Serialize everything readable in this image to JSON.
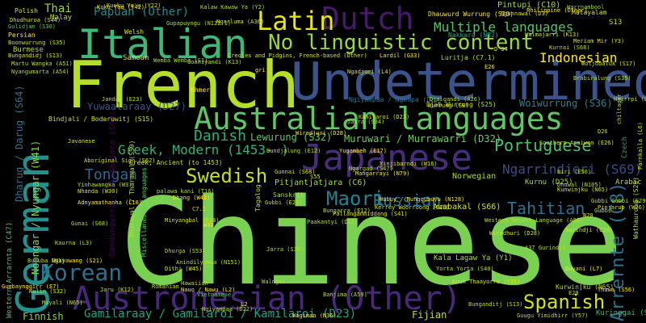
{
  "words": [
    {
      "text": "Chinese",
      "color": "#7ad151"
    },
    {
      "text": "Undetermined",
      "color": "#3b528b"
    },
    {
      "text": "French",
      "color": "#b5de2b"
    },
    {
      "text": "German",
      "color": "#21918c"
    },
    {
      "text": "Italian",
      "color": "#3aba76"
    },
    {
      "text": "Australian languages",
      "color": "#5ec962"
    },
    {
      "text": "Japanese",
      "color": "#472d7b"
    },
    {
      "text": "Austronesian (Other)",
      "color": "#482979"
    },
    {
      "text": "Dutch",
      "color": "#48186a"
    },
    {
      "text": "Latin",
      "color": "#e7e419"
    },
    {
      "text": "No linguistic content",
      "color": "#95d840"
    },
    {
      "text": "Korean",
      "color": "#2c728e"
    },
    {
      "text": "Arrernte (C8)",
      "color": "#2c728e"
    },
    {
      "text": "Spanish",
      "color": "#d0e11c"
    },
    {
      "text": "Swedish",
      "color": "#c0df25"
    },
    {
      "text": "Portuguese",
      "color": "#4ac16d"
    },
    {
      "text": "Multiple languages",
      "color": "#52c569"
    },
    {
      "text": "Indonesian",
      "color": "#fde725"
    },
    {
      "text": "Maori",
      "color": "#26828e"
    },
    {
      "text": "Danish",
      "color": "#28ae80"
    },
    {
      "text": "Tahitian",
      "color": "#2c728e"
    },
    {
      "text": "Russian",
      "color": "#2a788e"
    },
    {
      "text": "Tongan",
      "color": "#31688e"
    },
    {
      "text": "Ngarrindjeri (S69)",
      "color": "#3e4a89"
    },
    {
      "text": "Greek, Modern (1453- )",
      "color": "#2fb47c"
    },
    {
      "text": "Gamilaraay / Gamilaroi / Kamilaroi (D23)",
      "color": "#1fa188"
    },
    {
      "text": "Yuwaalaraay (D27)",
      "color": "#3b528b"
    },
    {
      "text": "Lewurung (S32)",
      "color": "#5ec962"
    },
    {
      "text": "Muruwari / Murrawarri (D32)",
      "color": "#6ece58"
    },
    {
      "text": "Pitjantjatjara (C6)",
      "color": "#a5db36"
    },
    {
      "text": "Noongar / Nyungar (W41)",
      "color": "#84d44b"
    },
    {
      "text": "Woiwurrung (S36)",
      "color": "#26828e"
    },
    {
      "text": "Awabakal (S66)",
      "color": "#d8e219"
    },
    {
      "text": "Fijian",
      "color": "#b5de2b"
    },
    {
      "text": "Kala Lagaw Ya (Y1)",
      "color": "#a8db34"
    },
    {
      "text": "Kurnu (D25)",
      "color": "#a0da39"
    },
    {
      "text": "Finnish",
      "color": "#8dd544"
    },
    {
      "text": "Thai",
      "color": "#98d83e"
    },
    {
      "text": "Papuan (Other)",
      "color": "#23898e"
    },
    {
      "text": "Pintupi (C10)",
      "color": "#a2da37"
    },
    {
      "text": "Norwegian",
      "color": "#a8db34"
    },
    {
      "text": "Kuringgai (S62)",
      "color": "#3aba76"
    },
    {
      "text": "Kurwinjku (N65)",
      "color": "#b0dd2f"
    },
    {
      "text": "Dharug / Darug (S64)",
      "color": "#2d708e"
    },
    {
      "text": "Gundungurra / Gandangara (S60)",
      "color": "#440154"
    },
    {
      "text": "Bindjali / Bodaruwitj (S15)",
      "color": "#c8e020"
    },
    {
      "text": "Sanskrit",
      "color": "#addc30"
    },
    {
      "text": "Greek, Ancient (to 1453)",
      "color": "#c2df23"
    },
    {
      "text": "Wathaurong (S29)",
      "color": "#b5de2b"
    },
    {
      "text": "Miscellaneous languages",
      "color": "#5ec962"
    },
    {
      "text": "Tagalog",
      "color": "#c2df23"
    },
    {
      "text": "Arabic",
      "color": "#b5de2b"
    },
    {
      "text": "Czech",
      "color": "#1f9e89"
    },
    {
      "text": "Western Arrarnta (C47)",
      "color": "#44bf70"
    },
    {
      "text": "Djab Wurrung (S25)",
      "color": "#b5de2b"
    },
    {
      "text": "Kerrey Woorroong (S25)",
      "color": "#d8e219"
    },
    {
      "text": "Wubuy / Nunggubuyu (N128)",
      "color": "#fde725"
    },
    {
      "text": "Gumbaynggirr (E7)",
      "color": "#fde725"
    },
    {
      "text": "Samoan",
      "color": "#d8e219"
    },
    {
      "text": "Luritja (C7.1)",
      "color": "#a8db34"
    },
    {
      "text": "Nakkara (N82)",
      "color": "#22a785"
    },
    {
      "text": "Warrnambool",
      "color": "#9dd93b"
    },
    {
      "text": "Persian",
      "color": "#fde725"
    },
    {
      "text": "Polish",
      "color": "#d8e219"
    },
    {
      "text": "Malay",
      "color": "#b5de2b"
    },
    {
      "text": "Khmer",
      "color": "#fde725"
    },
    {
      "text": "Hawaiian",
      "color": "#b5de2b"
    },
    {
      "text": "Romanian",
      "color": "#b5de2b"
    },
    {
      "text": "Vietnamese",
      "color": "#5ec962"
    },
    {
      "text": "Brabiralung (S35)",
      "color": "#b5de2b"
    },
    {
      "text": "Meriam Mir (Y3)",
      "color": "#d8e219"
    },
    {
      "text": "Gubbi Gubbi (E29)",
      "color": "#b5de2b"
    },
    {
      "text": "Gulidjan (S30)",
      "color": "#5ec962"
    },
    {
      "text": "Boonwurrung (S35)",
      "color": "#d0e11c"
    },
    {
      "text": "Dhauwurd Wurrung (S20)",
      "color": "#fde725"
    },
    {
      "text": "Javanese",
      "color": "#d8e219"
    },
    {
      "text": "Ngiyampaa / Ngempa (D22)",
      "color": "#2a788e"
    },
    {
      "text": "Bungandidj (S13)",
      "color": "#d8e219"
    },
    {
      "text": "Burmese",
      "color": "#b5de2b"
    },
    {
      "text": "Djalgandi (A26)",
      "color": "#addc30"
    },
    {
      "text": "Wagiman (N36)",
      "color": "#fde725"
    },
    {
      "text": "Kalaw Kawaw Ya (Y2)",
      "color": "#addc30"
    },
    {
      "text": "Welsh",
      "color": "#d8e219"
    },
    {
      "text": "Jarra (S38)",
      "color": "#addc30"
    },
    {
      "text": "palawa kani (T16)",
      "color": "#b5de2b"
    },
    {
      "text": "Minyangbal (E18)",
      "color": "#d8e219"
    },
    {
      "text": "Dhurga (S53)",
      "color": "#b5de2b"
    },
    {
      "text": "Dharawal / Tharawal (S59)",
      "color": "#b5de2b"
    },
    {
      "text": "Nauo / Nawu (L2)",
      "color": "#fde725"
    },
    {
      "text": "Jaru (K12)",
      "color": "#d8e219"
    },
    {
      "text": "Wemba Wemba (S1)",
      "color": "#addc30"
    },
    {
      "text": "Creoles and Pidgins, French-based (Other)",
      "color": "#d8e219"
    },
    {
      "text": "Southern Anaiwan (E26)",
      "color": "#d8e219"
    },
    {
      "text": "Parnkalla (L6)",
      "color": "#d0e11c"
    },
    {
      "text": "Gupapuyngu (N122.1)",
      "color": "#b5de2b"
    },
    {
      "text": "Dhudhuroa (S44)",
      "color": "#d8e219"
    },
    {
      "text": "Wotjobaluk (S17)",
      "color": "#d0e11c"
    },
    {
      "text": "Ngunnawal (D3)",
      "color": "#d8e219"
    },
    {
      "text": "Mangarrayi (N79)",
      "color": "#fde725"
    },
    {
      "text": "Pallanganmiddang (S41)",
      "color": "#d8e219"
    },
    {
      "text": "Ngargad (S47)",
      "color": "#b5de2b"
    },
    {
      "text": "Kuku Yau (Y42)",
      "color": "#fde725"
    },
    {
      "text": "Kaurna (L3)",
      "color": "#b5de2b"
    },
    {
      "text": "Ngayawang (S21)",
      "color": "#fde725"
    },
    {
      "text": "Gunai (S68)",
      "color": "#b5de2b"
    },
    {
      "text": "Yorta Yorta (S40)",
      "color": "#b5de2b"
    },
    {
      "text": "Lardil (G33)",
      "color": "#fde725"
    },
    {
      "text": "Paakantyi (D12)",
      "color": "#b5de2b"
    },
    {
      "text": "Wiradjuri (D28)",
      "color": "#fde725"
    },
    {
      "text": "Bundjalung (E12)",
      "color": "#b5de2b"
    },
    {
      "text": "Yugambeh (E17)",
      "color": "#fde725"
    },
    {
      "text": "Jandai (E23)",
      "color": "#b5de2b"
    },
    {
      "text": "Kuuku Ya'u (Y22)",
      "color": "#d8e219"
    },
    {
      "text": "Martu Wangka (A51)",
      "color": "#b5de2b"
    },
    {
      "text": "Nyangumarta (A54)",
      "color": "#b5de2b"
    },
    {
      "text": "Philippine (Other)",
      "color": "#fde725"
    },
    {
      "text": "Malayalam",
      "color": "#d8e219"
    },
    {
      "text": "Bunuba (K1)",
      "color": "#b5de2b"
    },
    {
      "text": "Wurrung (S8)",
      "color": "#d8e219"
    },
    {
      "text": "Pinjarup (W26)",
      "color": "#d8e219"
    },
    {
      "text": "Yinhawangka (W3)",
      "color": "#b5de2b"
    },
    {
      "text": "Nhanda (W30)",
      "color": "#d8e219"
    },
    {
      "text": "Adnyamathanha (L10)",
      "color": "#fde725"
    },
    {
      "text": "Jaara (S34)",
      "color": "#b5de2b"
    },
    {
      "text": "Kamilaroi (D23)",
      "color": "#d8e219"
    },
    {
      "text": "Gooniyandi (K13)",
      "color": "#b5de2b"
    },
    {
      "text": "Aboriginal Sign (S62)",
      "color": "#d8e219"
    },
    {
      "text": "Guugu Yimidhirr (Y57)",
      "color": "#b5de2b"
    },
    {
      "text": "Ngadjuri (L4)",
      "color": "#d8e219"
    },
    {
      "text": "Gubbi (E29)",
      "color": "#b5de2b"
    },
    {
      "text": "Dithi (W45)",
      "color": "#d8e219"
    },
    {
      "text": "Dhang (W42)",
      "color": "#fde725"
    },
    {
      "text": "Anindilyakwa (N151)",
      "color": "#b5de2b"
    },
    {
      "text": "Kuuk Thaayorre (Y35)",
      "color": "#d8e219"
    },
    {
      "text": "Bunganditj (S13)",
      "color": "#b5de2b"
    },
    {
      "text": "Gunnai (S68)",
      "color": "#d8e219"
    },
    {
      "text": "Bungarra (E12)",
      "color": "#b5de2b"
    },
    {
      "text": "Kulin (S32)",
      "color": "#d8e219"
    },
    {
      "text": "Mayali (N65)",
      "color": "#b5de2b"
    },
    {
      "text": "Biri (E56)",
      "color": "#b5de2b"
    },
    {
      "text": "Gurindji (C20)",
      "color": "#d8e219"
    },
    {
      "text": "Thawa (S56)",
      "color": "#fde725"
    },
    {
      "text": "A37 Gurindji",
      "color": "#b5de2b"
    },
    {
      "text": "Yinjibarndi (W16)",
      "color": "#d8e219"
    },
    {
      "text": "Western Desert Language (A80)",
      "color": "#b5de2b"
    },
    {
      "text": "Wiradhuri (D28)",
      "color": "#d8e219"
    },
    {
      "text": "Dhuwal (N105)",
      "color": "#b5de2b"
    },
    {
      "text": "Kunwinjku (N65)",
      "color": "#d8e219"
    },
    {
      "text": "Kurnai (S68)",
      "color": "#b5de2b"
    },
    {
      "text": "Walmajarri (K13)",
      "color": "#d8e219"
    },
    {
      "text": "Nhirrpi (L21)",
      "color": "#b5de2b"
    },
    {
      "text": "Guyani (L7)",
      "color": "#fde725"
    },
    {
      "text": "Ngiyampaa (D22)",
      "color": "#b5de2b"
    },
    {
      "text": "D 34",
      "color": "#d8e219"
    },
    {
      "text": "E29",
      "color": "#b5de2b"
    },
    {
      "text": "E26",
      "color": "#fde725"
    },
    {
      "text": "D26",
      "color": "#b5de2b"
    },
    {
      "text": "C7.1",
      "color": "#d8e219"
    },
    {
      "text": "W41",
      "color": "#fde725"
    },
    {
      "text": "B20",
      "color": "#d8e219"
    },
    {
      "text": "L6",
      "color": "#b5de2b"
    },
    {
      "text": "gri",
      "color": "#fde725"
    },
    {
      "text": "chiltagar",
      "color": "#b5de2b"
    },
    {
      "text": "Gubbi",
      "color": "#b5de2b"
    },
    {
      "text": "S13",
      "color": "#b5de2b"
    },
    {
      "text": "S55",
      "color": "#d8e219"
    },
    {
      "text": "L2",
      "color": "#fde725"
    },
    {
      "text": "Walngal",
      "color": "#b5de2b"
    },
    {
      "text": "Banjima (A59)",
      "color": "#b5de2b"
    },
    {
      "text": "Ngarluma (A36)",
      "color": "#d8e219"
    }
  ]
}
